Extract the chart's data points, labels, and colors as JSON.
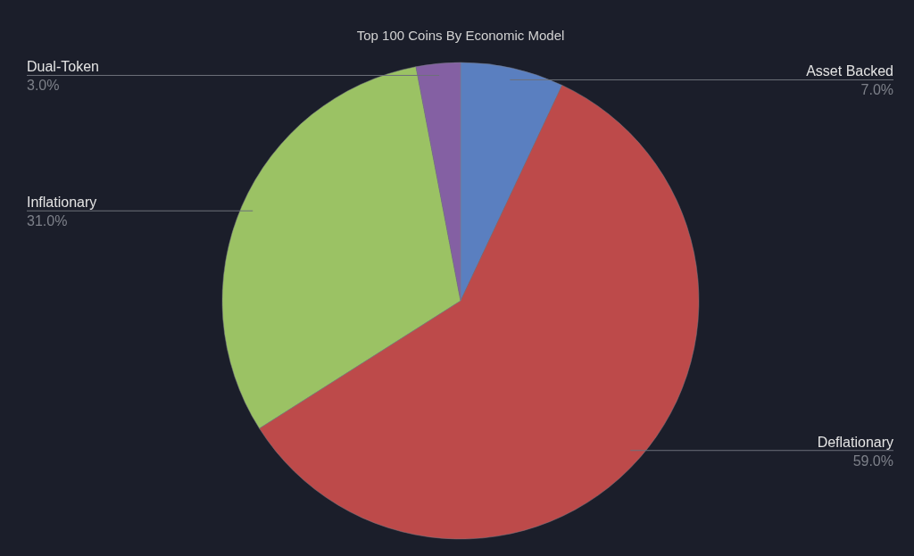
{
  "chart_data": {
    "type": "pie",
    "title": "Top 100 Coins By Economic Model",
    "categories": [
      "Asset Backed",
      "Deflationary",
      "Inflationary",
      "Dual-Token"
    ],
    "values": [
      7,
      59,
      31,
      3
    ],
    "colors": [
      "#5a7fc0",
      "#bd4a4a",
      "#9bc264",
      "#8460a3"
    ],
    "value_labels": [
      "7.0%",
      "59.0%",
      "31.0%",
      "3.0%"
    ]
  }
}
